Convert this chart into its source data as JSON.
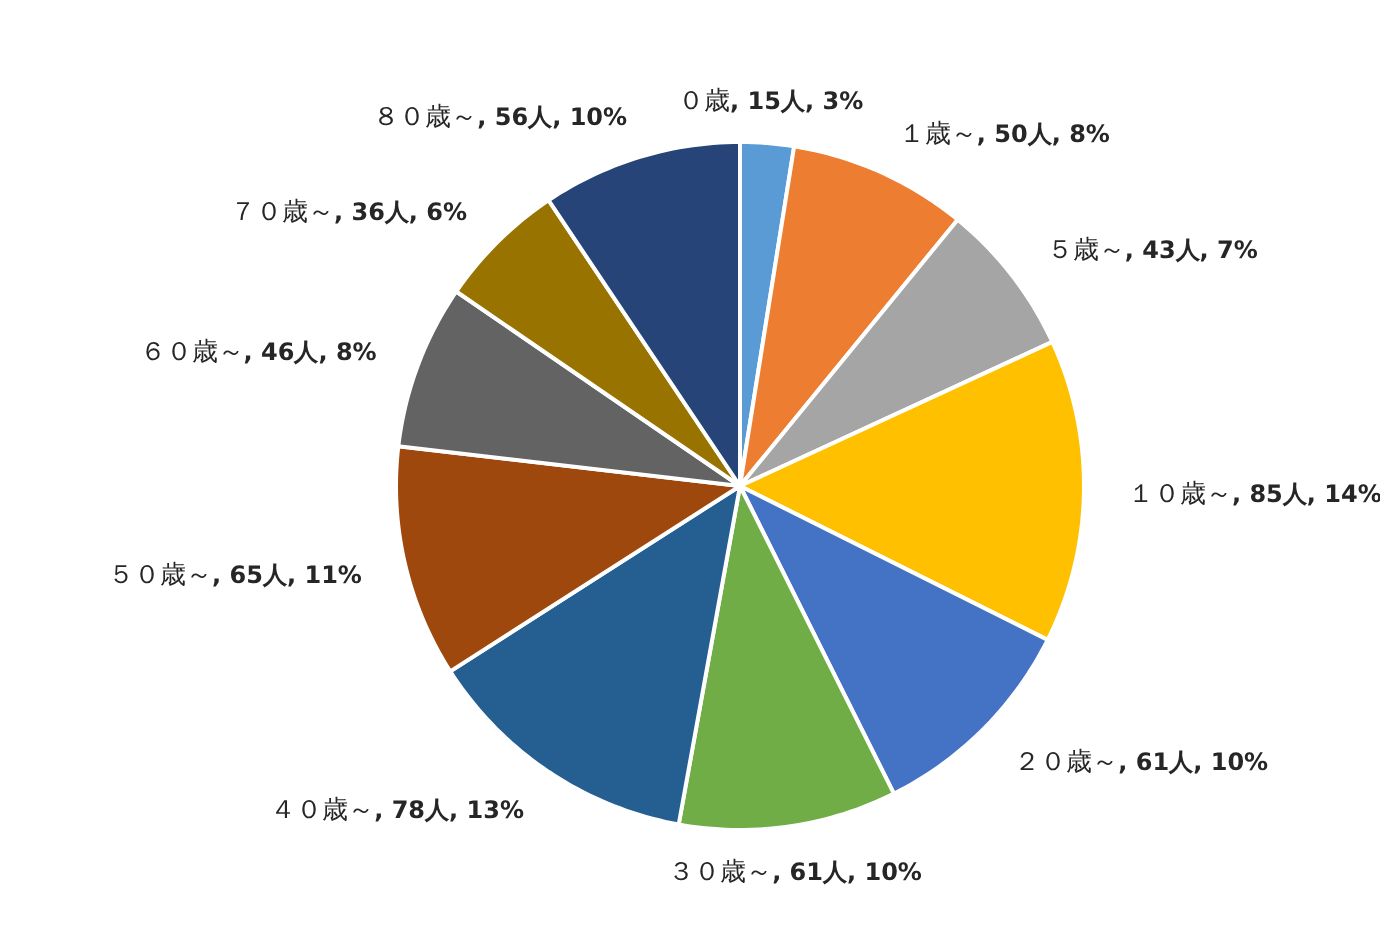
{
  "chart_data": {
    "type": "pie",
    "categories": [
      "０歳",
      "１歳～",
      "５歳～",
      "１０歳～",
      "２０歳～",
      "３０歳～",
      "４０歳～",
      "５０歳～",
      "６０歳～",
      "７０歳～",
      "８０歳～"
    ],
    "values": [
      15,
      50,
      43,
      85,
      61,
      61,
      78,
      65,
      46,
      36,
      56
    ],
    "value_labels": [
      ", 15人, 3%",
      ", 50人, 8%",
      ", 43人, 7%",
      ", 85人, 14%",
      ", 61人, 10%",
      ", 61人, 10%",
      ", 78人, 13%",
      ", 65人, 11%",
      ", 46人, 8%",
      ", 36人, 6%",
      ", 56人, 10%"
    ],
    "colors": [
      "#5b9bd5",
      "#ed7d31",
      "#a5a5a5",
      "#ffc000",
      "#4472c4",
      "#70ad47",
      "#255e91",
      "#9e480e",
      "#636363",
      "#997300",
      "#264478"
    ]
  }
}
